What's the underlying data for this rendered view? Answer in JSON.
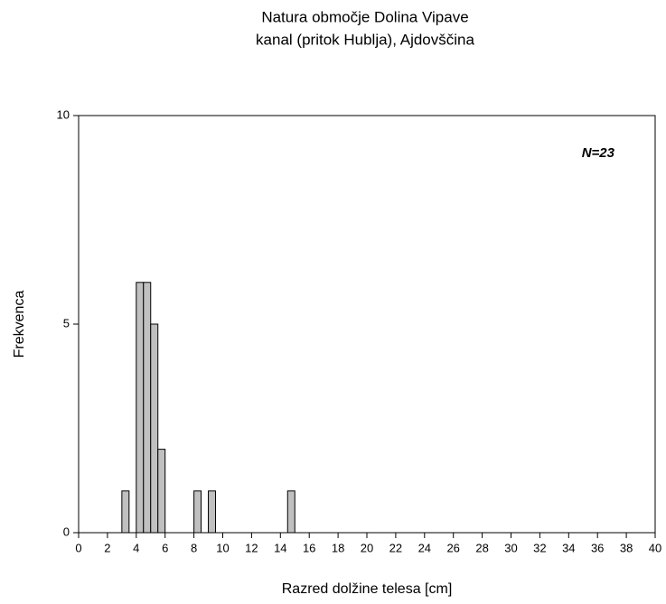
{
  "chart_data": {
    "type": "histogram",
    "title": "Natura območje Dolina Vipave",
    "subtitle": "kanal (pritok Hublja), Ajdovščina",
    "x_label": "Razred dolžine telesa [cm]",
    "y_label": "Frekvenca",
    "annotation": "N=23",
    "color": "#c0c0c0",
    "bins": [
      3,
      3.5,
      4,
      4.5,
      5,
      5.5,
      6,
      6.5,
      7,
      7.5,
      8,
      8.5,
      9,
      9.5,
      10,
      10.5,
      11,
      11.5,
      12,
      12.5,
      13,
      13.5,
      14,
      14.5,
      15
    ],
    "values": [
      1,
      0,
      6,
      6,
      5,
      2,
      0,
      0,
      0,
      0,
      1,
      0,
      1,
      0,
      0,
      0,
      0,
      0,
      0,
      0,
      0,
      0,
      0,
      1
    ],
    "xlim": [
      0,
      40
    ],
    "xticks": [
      0,
      2,
      4,
      6,
      8,
      10,
      12,
      14,
      16,
      18,
      20,
      22,
      24,
      26,
      28,
      30,
      32,
      34,
      36,
      38,
      40
    ],
    "ylim": [
      0,
      10
    ],
    "yticks": [
      0,
      5,
      10
    ],
    "grid": false
  }
}
